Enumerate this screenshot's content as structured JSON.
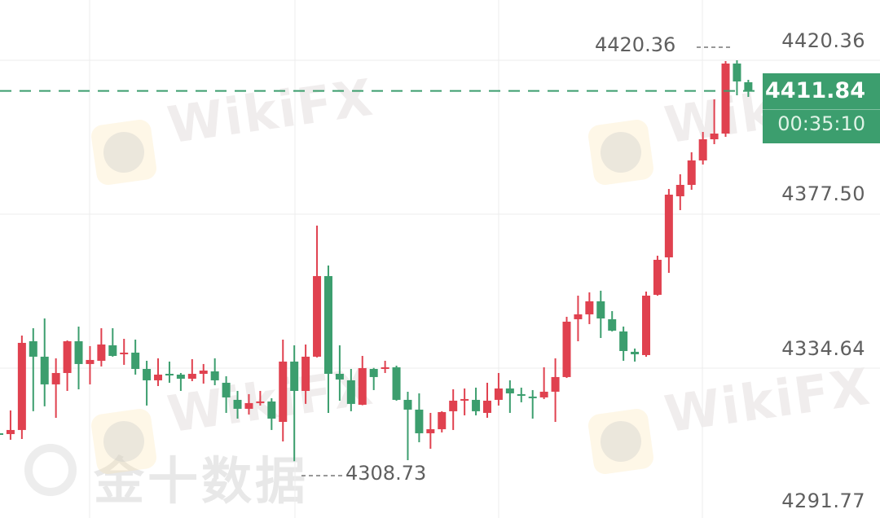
{
  "watermarks": {
    "brand": "WikiFX",
    "source": "金十数据"
  },
  "colors": {
    "up": "#e0414f",
    "down": "#3c9e6e",
    "grid": "#ececec",
    "axis_text": "#5f5f5f"
  },
  "chart_data": {
    "type": "candlestick",
    "y_axis": {
      "position": "right",
      "ticks": [
        "4420.36",
        "4377.50",
        "4334.64",
        "4291.77"
      ],
      "range": [
        4291.77,
        4420.36
      ]
    },
    "grid": true,
    "high_marker": "4420.36",
    "low_marker": "4308.73",
    "last_price": "4411.84",
    "countdown": "00:35:10",
    "candles": [
      [
        4316.5,
        4316.73,
        4316.05,
        4316.27
      ],
      [
        4316.27,
        4322.86,
        4314.69,
        4317.41
      ],
      [
        4317.41,
        4343.71,
        4314.91,
        4341.67
      ],
      [
        4342.12,
        4345.75,
        4322.63,
        4337.82
      ],
      [
        4337.82,
        4348.47,
        4323.99,
        4330.11
      ],
      [
        4330.11,
        4337.36,
        4320.81,
        4333.28
      ],
      [
        4333.28,
        4342.35,
        4328.29,
        4342.12
      ],
      [
        4342.12,
        4346.21,
        4328.75,
        4335.78
      ],
      [
        4335.78,
        4340.77,
        4330.11,
        4336.91
      ],
      [
        4336.68,
        4345.75,
        4335.1,
        4341.22
      ],
      [
        4340.99,
        4345.75,
        4337.82,
        4338.04
      ],
      [
        4338.5,
        4342.8,
        4335.55,
        4338.95
      ],
      [
        4338.95,
        4342.58,
        4332.83,
        4334.41
      ],
      [
        4334.41,
        4336.68,
        4324.22,
        4331.24
      ],
      [
        4331.24,
        4337.36,
        4329.65,
        4332.83
      ],
      [
        4333.05,
        4336.46,
        4330.56,
        4332.83
      ],
      [
        4332.83,
        4333.28,
        4328.29,
        4331.69
      ],
      [
        4331.69,
        4337.14,
        4331.01,
        4333.05
      ],
      [
        4333.05,
        4335.78,
        4330.33,
        4333.96
      ],
      [
        4333.73,
        4337.36,
        4329.88,
        4331.24
      ],
      [
        4330.56,
        4332.37,
        4322.17,
        4326.48
      ],
      [
        4325.8,
        4328.29,
        4320.58,
        4323.31
      ],
      [
        4323.31,
        4327.39,
        4321.72,
        4324.9
      ],
      [
        4325.12,
        4328.29,
        4324.22,
        4325.35
      ],
      [
        4325.35,
        4326.25,
        4317.41,
        4320.58
      ],
      [
        4319.67,
        4342.58,
        4314.23,
        4336.46
      ],
      [
        4336.46,
        4340.99,
        4308.73,
        4328.29
      ],
      [
        4328.29,
        4341.22,
        4324.67,
        4337.82
      ],
      [
        4337.82,
        4374.33,
        4337.6,
        4360.27
      ],
      [
        4360.27,
        4363.21,
        4322.17,
        4333.05
      ],
      [
        4333.05,
        4340.99,
        4325.57,
        4331.47
      ],
      [
        4331.24,
        4334.41,
        4322.63,
        4324.67
      ],
      [
        4324.44,
        4338.04,
        4324.3,
        4334.64
      ],
      [
        4334.41,
        4334.7,
        4328.52,
        4332.15
      ],
      [
        4334.41,
        4336.68,
        4333.28,
        4334.87
      ],
      [
        4334.87,
        4335.32,
        4325.57,
        4325.8
      ],
      [
        4325.8,
        4328.07,
        4309.01,
        4323.08
      ],
      [
        4323.08,
        4327.61,
        4314.0,
        4316.5
      ],
      [
        4316.5,
        4322.17,
        4312.19,
        4317.63
      ],
      [
        4317.63,
        4322.63,
        4316.73,
        4322.4
      ],
      [
        4322.63,
        4328.75,
        4317.41,
        4325.57
      ],
      [
        4325.57,
        4328.97,
        4321.49,
        4326.03
      ],
      [
        4325.8,
        4329.2,
        4321.49,
        4322.63
      ],
      [
        4322.17,
        4330.56,
        4320.81,
        4325.57
      ],
      [
        4325.8,
        4333.28,
        4324.22,
        4328.97
      ],
      [
        4328.97,
        4331.24,
        4322.17,
        4327.61
      ],
      [
        4327.39,
        4329.2,
        4325.12,
        4326.93
      ],
      [
        4326.71,
        4328.52,
        4320.58,
        4326.48
      ],
      [
        4326.48,
        4334.87,
        4326.03,
        4328.07
      ],
      [
        4328.07,
        4337.36,
        4319.67,
        4332.15
      ],
      [
        4332.15,
        4348.93,
        4331.9,
        4347.57
      ],
      [
        4348.25,
        4354.82,
        4342.12,
        4349.61
      ],
      [
        4349.61,
        4355.73,
        4346.89,
        4353.24
      ],
      [
        4353.24,
        4356.19,
        4343.03,
        4348.47
      ],
      [
        4348.25,
        4350.51,
        4344.85,
        4345.07
      ],
      [
        4344.85,
        4346.21,
        4336.68,
        4339.4
      ],
      [
        4339.18,
        4340.09,
        4336.46,
        4338.5
      ],
      [
        4338.27,
        4355.96,
        4337.82,
        4354.82
      ],
      [
        4355.05,
        4365.94,
        4354.8,
        4364.8
      ],
      [
        4365.48,
        4384.53,
        4361.17,
        4382.94
      ],
      [
        4382.49,
        4388.61,
        4378.63,
        4385.66
      ],
      [
        4385.66,
        4394.74,
        4384.3,
        4392.47
      ],
      [
        4392.47,
        4400.4,
        4391.33,
        4398.36
      ],
      [
        4398.36,
        4409.48,
        4397.0,
        4399.95
      ],
      [
        4399.95,
        4420.13,
        4399.04,
        4419.45
      ],
      [
        4419.45,
        4420.36,
        4410.61,
        4414.46
      ],
      [
        4414.24,
        4414.92,
        4410.16,
        4411.84
      ]
    ]
  }
}
